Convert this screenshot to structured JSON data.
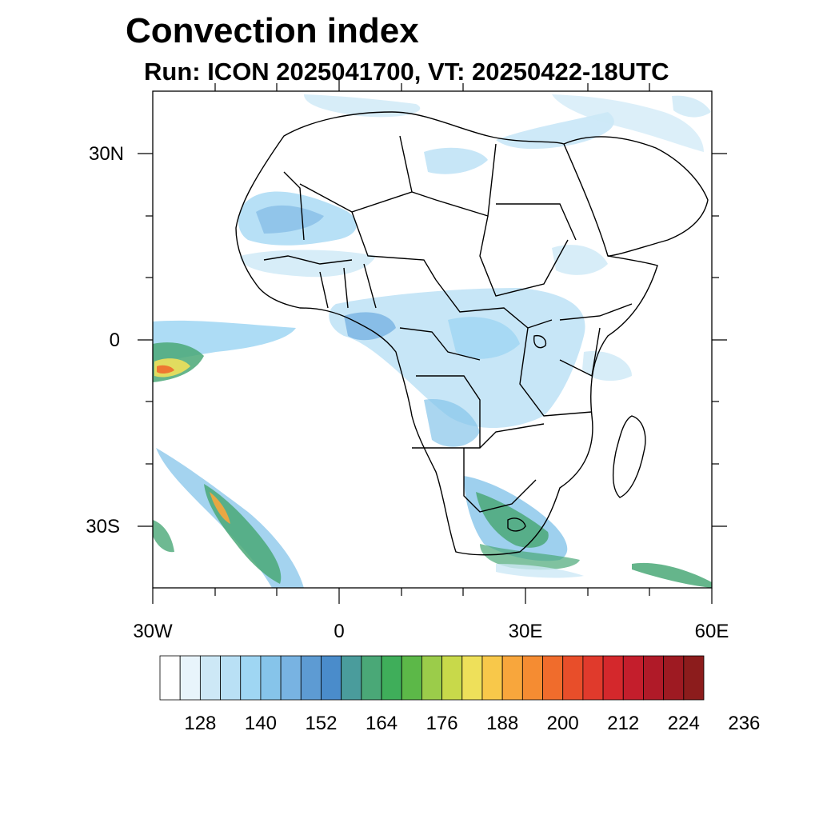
{
  "title": "Convection index",
  "subtitle": "Run: ICON 2025041700,  VT: 20250422-18UTC",
  "map": {
    "region": "Africa",
    "projection": "cylindrical-equidistant",
    "lon_range": [
      -30,
      60
    ],
    "lat_range": [
      -40,
      40
    ],
    "y_tick_labels": [
      "30N",
      "0",
      "30S"
    ],
    "x_tick_labels": [
      "30W",
      "0",
      "30E",
      "60E"
    ],
    "background": "#ffffff",
    "boundary_color": "#000000"
  },
  "colorbar": {
    "labels": [
      "128",
      "140",
      "152",
      "164",
      "176",
      "188",
      "200",
      "212",
      "224",
      "236"
    ],
    "colors": [
      "#ffffff",
      "#e8f4fb",
      "#cde8f6",
      "#b9e0f5",
      "#9fd6f3",
      "#86c4ea",
      "#78b3e2",
      "#5d9bd3",
      "#4a8ccb",
      "#4a9c9c",
      "#4aa877",
      "#3fae5a",
      "#5cb848",
      "#9bcc4a",
      "#c8d94a",
      "#eee05a",
      "#f8c84a",
      "#f8a63c",
      "#f58c32",
      "#f06c2c",
      "#e84e2a",
      "#e03a2c",
      "#d4282c",
      "#c41e2c",
      "#b01a28",
      "#9e1a22",
      "#8c1c1c"
    ]
  },
  "chart_data": {
    "type": "heatmap",
    "title": "Convection index",
    "subtitle": "Run: ICON 2025041700,  VT: 20250422-18UTC",
    "xlim": [
      -30,
      60
    ],
    "ylim": [
      -40,
      40
    ],
    "legend_placement": "bottom",
    "colorbar_ticks": [
      128,
      140,
      152,
      164,
      176,
      188,
      200,
      212,
      224,
      236
    ]
  }
}
